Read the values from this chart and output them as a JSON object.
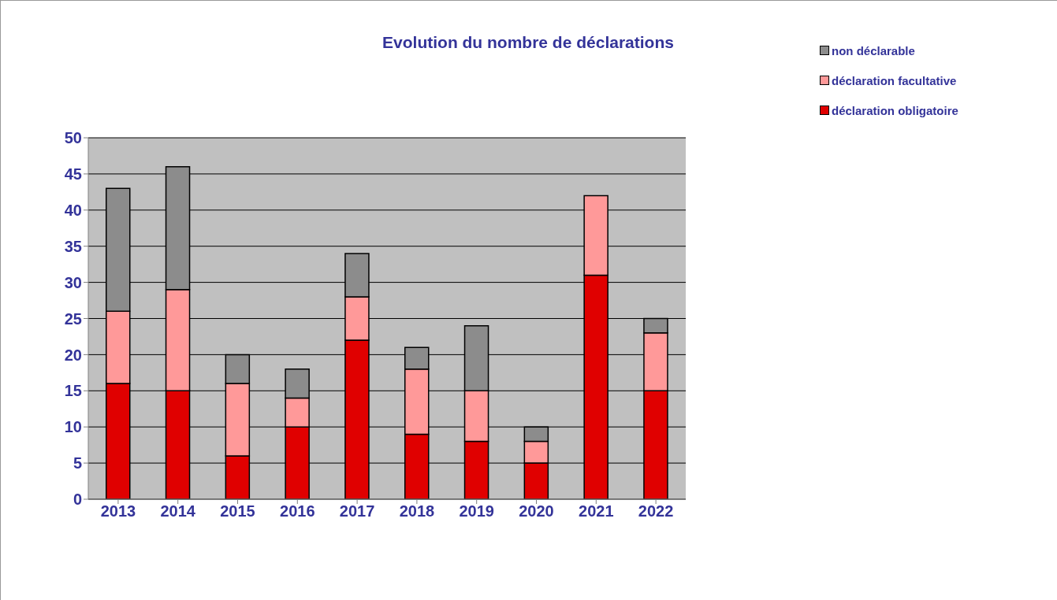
{
  "chart_data": {
    "type": "bar",
    "title": "Evolution du nombre de déclarations",
    "categories": [
      "2013",
      "2014",
      "2015",
      "2016",
      "2017",
      "2018",
      "2019",
      "2020",
      "2021",
      "2022"
    ],
    "stacked": true,
    "series": [
      {
        "name": "déclaration obligatoire",
        "color": "#e00000",
        "values": [
          16,
          15,
          6,
          10,
          22,
          9,
          8,
          5,
          31,
          15
        ]
      },
      {
        "name": "déclaration facultative",
        "color": "#ff9999",
        "values": [
          10,
          14,
          10,
          4,
          6,
          9,
          7,
          3,
          11,
          8
        ]
      },
      {
        "name": "non déclarable",
        "color": "#8c8c8c",
        "values": [
          17,
          17,
          4,
          4,
          6,
          3,
          9,
          2,
          0,
          2
        ]
      }
    ],
    "ylim": [
      0,
      50
    ],
    "yticks": [
      0,
      5,
      10,
      15,
      20,
      25,
      30,
      35,
      40,
      45,
      50
    ],
    "grid": "y",
    "legend": "top right"
  }
}
